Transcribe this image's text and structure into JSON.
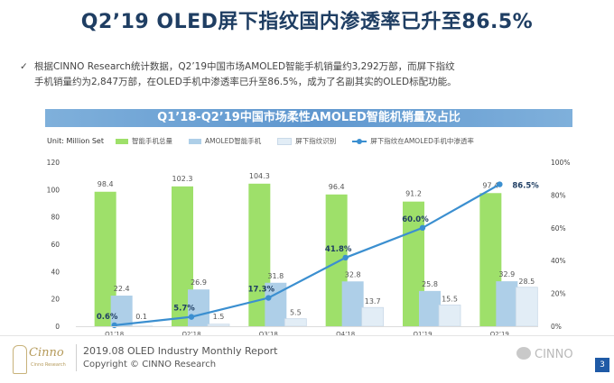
{
  "title": "Q2’19 OLED屏下指纹国内渗透率已升至86.5%",
  "bullet": {
    "mark": "✓",
    "line1": "根据CINNO Research统计数据，Q2’19中国市场AMOLED智能手机销量约3,292万部，而屏下指纹",
    "line2": "手机销量约为2,847万部，在OLED手机中渗透率已升至86.5%，成为了名副其实的OLED标配功能。"
  },
  "footer": {
    "logo_text": "Cinno",
    "logo_sub": "Cinno Research",
    "report": "2019.08 OLED Industry Monthly Report",
    "copyright": "Copyright © CINNO Research",
    "watermark": "CINNO",
    "page": "3"
  },
  "colors": {
    "total": "#9ee06a",
    "amoled": "#aecfe8",
    "fingerprint": "#e2edf6",
    "line": "#3b8fd0",
    "title": "#1f3e63"
  },
  "chart_data": {
    "type": "bar",
    "title": "Q1’18-Q2’19中国市场柔性AMOLED智能机销量及占比",
    "unit_label": "Unit: Million Set",
    "categories": [
      "Q1’18",
      "Q2’18",
      "Q3’18",
      "Q4’18",
      "Q1’19",
      "Q2’19"
    ],
    "series": [
      {
        "name": "智能手机总量",
        "values": [
          98.4,
          102.3,
          104.3,
          96.4,
          91.2,
          97.4
        ],
        "labels": [
          "98.4",
          "102.3",
          "104.3",
          "96.4",
          "91.2",
          "97.4"
        ]
      },
      {
        "name": "AMOLED智能手机",
        "values": [
          22.4,
          26.9,
          31.8,
          32.8,
          25.8,
          32.9
        ],
        "labels": [
          "22.4",
          "26.9",
          "31.8",
          "32.8",
          "25.8",
          "32.9"
        ]
      },
      {
        "name": "屏下指纹识别",
        "values": [
          0.1,
          1.5,
          5.5,
          13.7,
          15.5,
          28.5
        ],
        "labels": [
          "0.1",
          "1.5",
          "5.5",
          "13.7",
          "15.5",
          "28.5"
        ]
      }
    ],
    "line_series": {
      "name": "屏下指纹在AMOLED手机中渗透率",
      "values": [
        0.6,
        5.7,
        17.3,
        41.8,
        60.0,
        86.5
      ],
      "labels": [
        "0.6%",
        "5.7%",
        "17.3%",
        "41.8%",
        "60.0%",
        "86.5%"
      ]
    },
    "y_left": {
      "ticks": [
        0,
        20,
        40,
        60,
        80,
        100,
        120
      ],
      "lim": [
        0,
        120
      ]
    },
    "y_right": {
      "ticks": [
        0,
        20,
        40,
        60,
        80,
        100
      ],
      "tick_labels": [
        "0%",
        "20%",
        "40%",
        "60%",
        "80%",
        "100%"
      ],
      "lim": [
        0,
        100
      ]
    },
    "legend_position": "top"
  }
}
